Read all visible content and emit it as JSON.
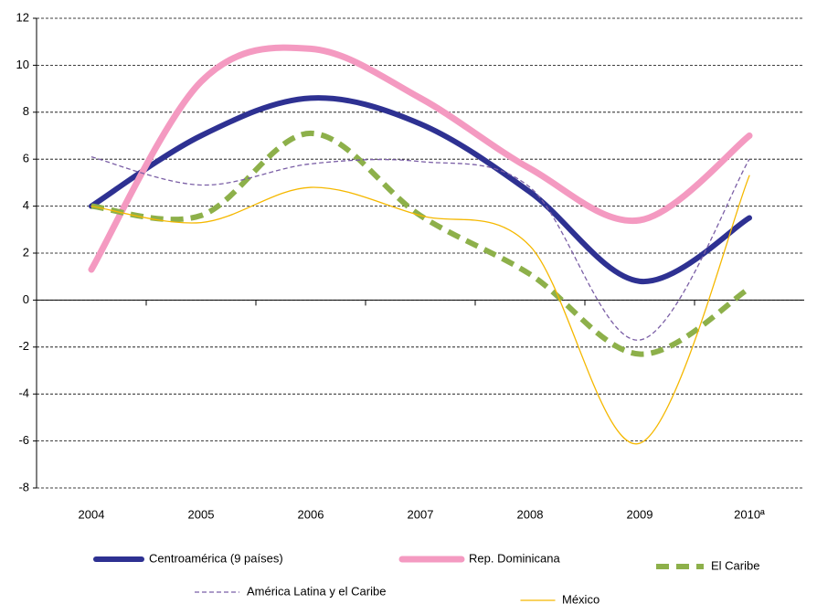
{
  "chart_data": {
    "type": "line",
    "categories": [
      "2004",
      "2005",
      "2006",
      "2007",
      "2008",
      "2009",
      "2010ª"
    ],
    "series": [
      {
        "name": "Centroamérica (9 países)",
        "color": "#2e3192",
        "dashed": false,
        "values": [
          4.0,
          7.0,
          8.6,
          7.5,
          4.6,
          0.8,
          3.5
        ]
      },
      {
        "name": "Rep. Dominicana",
        "color": "#f49ac1",
        "dashed": false,
        "values": [
          1.3,
          9.3,
          10.7,
          8.6,
          5.6,
          3.4,
          7.0
        ]
      },
      {
        "name": "El Caribe",
        "color": "#8db04a",
        "dashed": true,
        "values": [
          4.0,
          3.6,
          7.1,
          3.6,
          1.1,
          -2.3,
          0.5
        ]
      },
      {
        "name": "América Latina y el Caribe",
        "color": "#7b5fa6",
        "dashed": true,
        "values": [
          6.1,
          4.9,
          5.8,
          5.9,
          4.8,
          -1.7,
          6.0
        ]
      },
      {
        "name": "México",
        "color": "#f5b800",
        "dashed": false,
        "values": [
          4.0,
          3.3,
          4.8,
          3.6,
          2.3,
          -6.1,
          5.3
        ]
      }
    ],
    "ylim": [
      -8,
      12
    ],
    "yticks": [
      -8,
      -6,
      -4,
      -2,
      0,
      2,
      4,
      6,
      8,
      10,
      12
    ],
    "grid": true
  }
}
